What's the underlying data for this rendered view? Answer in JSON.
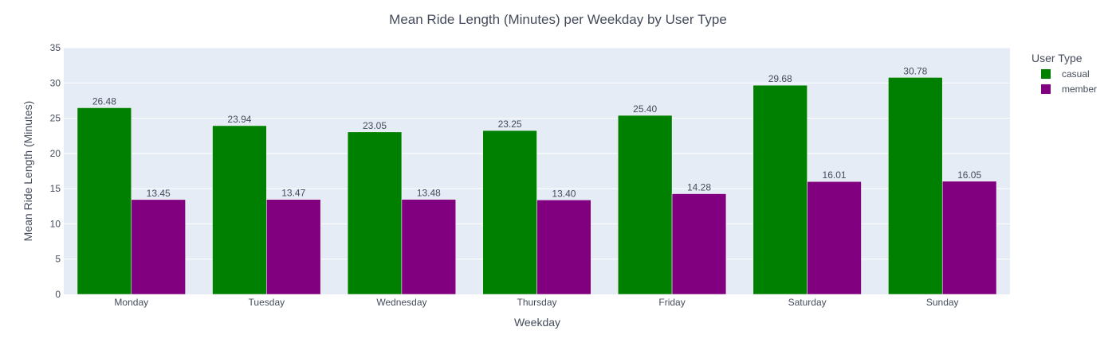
{
  "chart_data": {
    "type": "bar",
    "title": "Mean Ride Length (Minutes) per Weekday by User Type",
    "xlabel": "Weekday",
    "ylabel": "Mean Ride Length (Minutes)",
    "categories": [
      "Monday",
      "Tuesday",
      "Wednesday",
      "Thursday",
      "Friday",
      "Saturday",
      "Sunday"
    ],
    "series": [
      {
        "name": "casual",
        "color": "#008000",
        "values": [
          26.48,
          23.94,
          23.05,
          23.25,
          25.4,
          29.68,
          30.78
        ],
        "labels": [
          "26.48",
          "23.94",
          "23.05",
          "23.25",
          "25.40",
          "29.68",
          "30.78"
        ]
      },
      {
        "name": "member",
        "color": "#800080",
        "values": [
          13.45,
          13.47,
          13.48,
          13.4,
          14.28,
          16.01,
          16.05
        ],
        "labels": [
          "13.45",
          "13.47",
          "13.48",
          "13.40",
          "14.28",
          "16.01",
          "16.05"
        ]
      }
    ],
    "ylim": [
      0,
      35
    ],
    "yticks": [
      0,
      5,
      10,
      15,
      20,
      25,
      30,
      35
    ],
    "grid": true,
    "legend": {
      "title": "User Type",
      "position": "right"
    },
    "plot_bg": "#e5ecf6"
  }
}
